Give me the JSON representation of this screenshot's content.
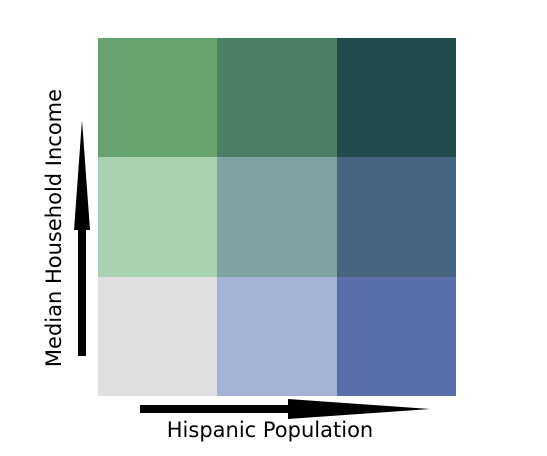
{
  "legend": {
    "grid": [
      [
        "#66a36f",
        "#4b8066",
        "#214a4a"
      ],
      [
        "#a8d1b1",
        "#7fa3a3",
        "#456580"
      ],
      [
        "#e0e0e0",
        "#a6b2d3",
        "#5a6eaa"
      ]
    ]
  },
  "axes": {
    "x_label": "Hispanic Population",
    "y_label": "Median Household Income"
  }
}
